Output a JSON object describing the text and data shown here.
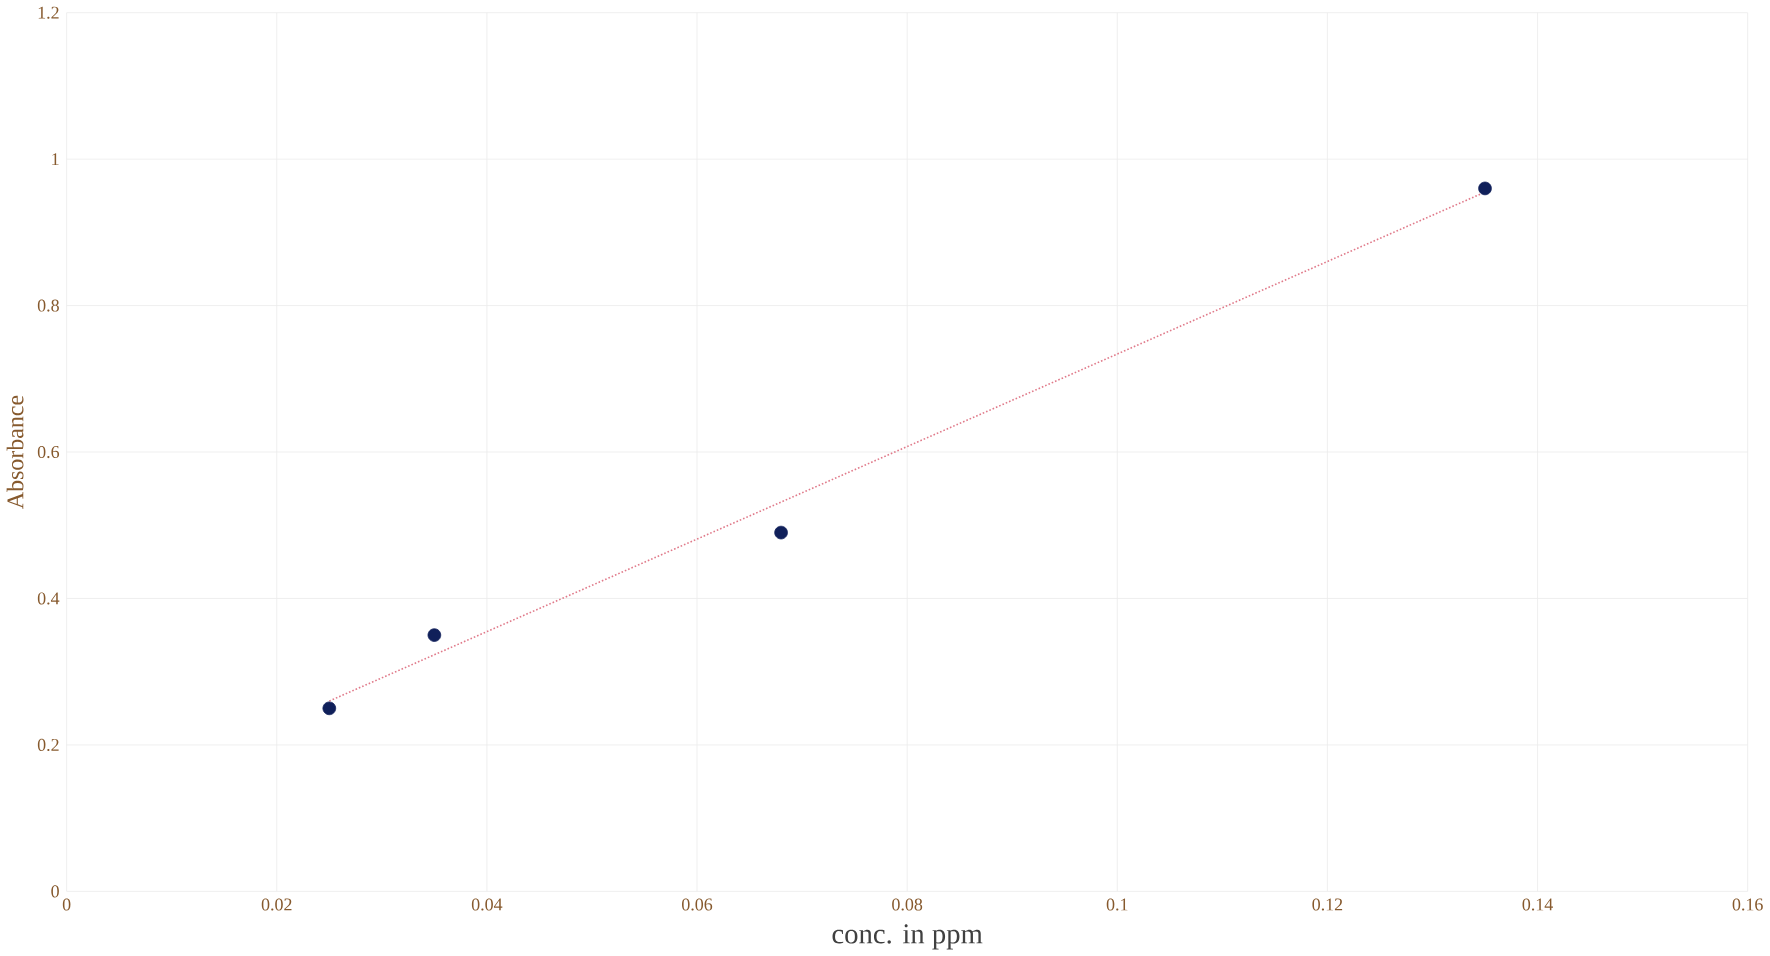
{
  "chart_data": {
    "type": "scatter",
    "xlabel": "conc. in ppm",
    "ylabel": "Absorbance",
    "series": [
      {
        "color": "#10205a",
        "marker": "circle",
        "x": [
          0.025,
          0.035,
          0.068,
          0.135
        ],
        "values": [
          0.25,
          0.35,
          0.49,
          0.96
        ]
      },
      {
        "type": "line",
        "color": "#e07a8a",
        "line_style": "dotted",
        "marker": "none",
        "x": [
          0.025,
          0.135
        ],
        "values": [
          0.26,
          0.955
        ]
      }
    ],
    "xlim": [
      0,
      0.16
    ],
    "ylim": [
      0,
      1.2
    ],
    "xticks": [
      0,
      0.02,
      0.04,
      0.06,
      0.08,
      0.1,
      0.12,
      0.14,
      0.16
    ],
    "yticks": [
      0,
      0.2,
      0.4,
      0.6,
      0.8,
      1,
      1.2
    ],
    "grid": true
  }
}
